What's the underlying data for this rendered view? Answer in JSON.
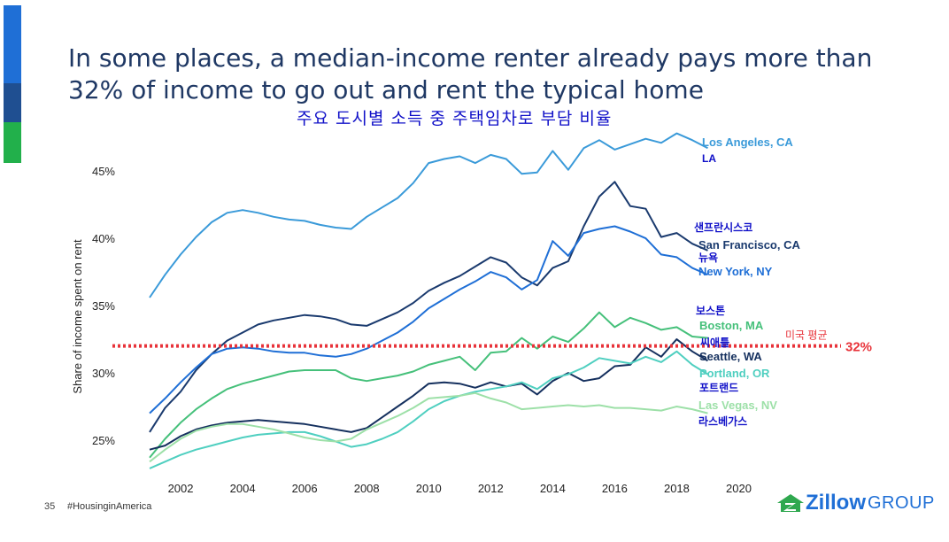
{
  "slide": {
    "title": "In some places, a median-income renter already pays more than 32% of income to go out and rent the typical home",
    "subtitle_ko": "주요 도시별 소득 중 주택임차로 부담 비율",
    "page_number": "35",
    "hashtag": "#HousinginAmerica",
    "logo_word": "Zillow",
    "logo_group": "GROUP",
    "accent_colors": [
      "#1f6fd6",
      "#1f4f91",
      "#22b04b"
    ]
  },
  "chart_data": {
    "type": "line",
    "title": "In some places, a median-income renter already pays more than 32% of income to go out and rent the typical home",
    "xlabel": "",
    "ylabel": "Share of income spent on rent",
    "x": [
      2001.0,
      2001.5,
      2002.0,
      2002.5,
      2003.0,
      2003.5,
      2004.0,
      2004.5,
      2005.0,
      2005.5,
      2006.0,
      2006.5,
      2007.0,
      2007.5,
      2008.0,
      2008.5,
      2009.0,
      2009.5,
      2010.0,
      2010.5,
      2011.0,
      2011.5,
      2012.0,
      2012.5,
      2013.0,
      2013.5,
      2014.0,
      2014.5,
      2015.0,
      2015.5,
      2016.0,
      2016.5,
      2017.0,
      2017.5,
      2018.0,
      2018.5,
      2019.0
    ],
    "xlim": [
      2000.6,
      2020.3
    ],
    "ylim": [
      22.5,
      48.5
    ],
    "x_ticks": [
      2002,
      2004,
      2006,
      2008,
      2010,
      2012,
      2014,
      2016,
      2018,
      2020
    ],
    "x_tick_labels": [
      "2002",
      "2004",
      "2006",
      "2008",
      "2010",
      "2012",
      "2014",
      "2016",
      "2018",
      "2020"
    ],
    "y_ticks": [
      25,
      30,
      35,
      40,
      45
    ],
    "y_tick_labels": [
      "25%",
      "30%",
      "35%",
      "40%",
      "45%"
    ],
    "grid": false,
    "series": [
      {
        "name": "Los Angeles, CA",
        "label_ko": "LA",
        "color": "#3a9ad9",
        "values": [
          35.6,
          37.3,
          38.8,
          40.1,
          41.2,
          41.9,
          42.1,
          41.9,
          41.6,
          41.4,
          41.3,
          41.0,
          40.8,
          40.7,
          41.6,
          42.3,
          43.0,
          44.1,
          45.6,
          45.9,
          46.1,
          45.6,
          46.2,
          45.9,
          44.8,
          44.9,
          46.5,
          45.1,
          46.7,
          47.3,
          46.6,
          47.0,
          47.4,
          47.1,
          47.8,
          47.3,
          46.7
        ]
      },
      {
        "name": "San Francisco, CA",
        "label_ko": "샌프란시스코",
        "color": "#1a3a6e",
        "values": [
          25.6,
          27.4,
          28.6,
          30.2,
          31.4,
          32.4,
          33.0,
          33.6,
          33.9,
          34.1,
          34.3,
          34.2,
          34.0,
          33.6,
          33.5,
          34.0,
          34.5,
          35.2,
          36.1,
          36.7,
          37.2,
          37.9,
          38.6,
          38.2,
          37.1,
          36.5,
          37.8,
          38.3,
          40.9,
          43.1,
          44.2,
          42.4,
          42.2,
          40.1,
          40.4,
          39.6,
          39.1
        ]
      },
      {
        "name": "New York, NY",
        "label_ko": "뉴욕",
        "color": "#1f6fd6",
        "values": [
          27.0,
          28.1,
          29.3,
          30.4,
          31.4,
          31.8,
          31.9,
          31.8,
          31.6,
          31.5,
          31.5,
          31.3,
          31.2,
          31.4,
          31.8,
          32.4,
          33.0,
          33.8,
          34.8,
          35.5,
          36.2,
          36.8,
          37.5,
          37.1,
          36.2,
          36.9,
          39.8,
          38.7,
          40.4,
          40.7,
          40.9,
          40.5,
          40.0,
          38.8,
          38.6,
          37.8,
          37.3
        ]
      },
      {
        "name": "Boston, MA",
        "label_ko": "보스톤",
        "color": "#45c07a",
        "values": [
          23.7,
          25.1,
          26.3,
          27.3,
          28.1,
          28.8,
          29.2,
          29.5,
          29.8,
          30.1,
          30.2,
          30.2,
          30.2,
          29.6,
          29.4,
          29.6,
          29.8,
          30.1,
          30.6,
          30.9,
          31.2,
          30.2,
          31.5,
          31.6,
          32.6,
          31.8,
          32.7,
          32.3,
          33.3,
          34.5,
          33.4,
          34.1,
          33.7,
          33.2,
          33.4,
          32.7,
          32.6
        ]
      },
      {
        "name": "Seattle, WA",
        "label_ko": "씨애틀",
        "color": "#15305e",
        "values": [
          24.3,
          24.6,
          25.3,
          25.8,
          26.1,
          26.3,
          26.4,
          26.5,
          26.4,
          26.3,
          26.2,
          26.0,
          25.8,
          25.6,
          25.9,
          26.7,
          27.5,
          28.3,
          29.2,
          29.3,
          29.2,
          28.9,
          29.3,
          29.0,
          29.2,
          28.4,
          29.4,
          30.0,
          29.4,
          29.6,
          30.5,
          30.6,
          31.9,
          31.2,
          32.5,
          31.6,
          30.9
        ]
      },
      {
        "name": "Portland, OR",
        "label_ko": "포트랜드",
        "color": "#4fcfc0",
        "values": [
          22.9,
          23.4,
          23.9,
          24.3,
          24.6,
          24.9,
          25.2,
          25.4,
          25.5,
          25.6,
          25.6,
          25.3,
          24.9,
          24.5,
          24.7,
          25.1,
          25.6,
          26.4,
          27.3,
          27.9,
          28.3,
          28.6,
          28.8,
          29.0,
          29.3,
          28.8,
          29.6,
          29.9,
          30.4,
          31.1,
          30.9,
          30.7,
          31.2,
          30.8,
          31.6,
          30.6,
          29.9
        ]
      },
      {
        "name": "Las Vegas, NV",
        "label_ko": "라스베가스",
        "color": "#9de0a8",
        "values": [
          23.4,
          24.3,
          25.1,
          25.7,
          26.0,
          26.2,
          26.2,
          26.0,
          25.8,
          25.5,
          25.2,
          25.0,
          24.9,
          25.1,
          25.8,
          26.3,
          26.8,
          27.4,
          28.1,
          28.2,
          28.3,
          28.5,
          28.1,
          27.8,
          27.3,
          27.4,
          27.5,
          27.6,
          27.5,
          27.6,
          27.4,
          27.4,
          27.3,
          27.2,
          27.5,
          27.3,
          27.0
        ]
      }
    ],
    "reference_line": {
      "value": 32,
      "label": "32%",
      "label_ko": "미국 평균",
      "color": "#e8333a"
    }
  }
}
